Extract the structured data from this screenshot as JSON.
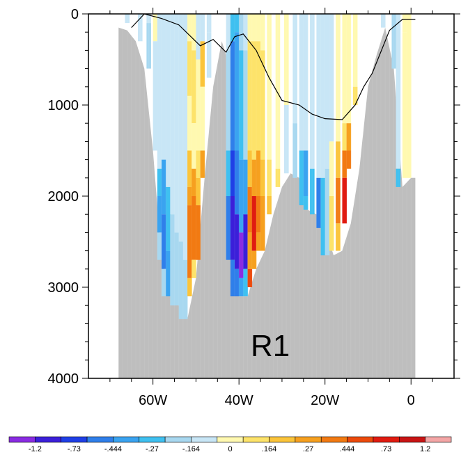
{
  "chart_data": {
    "type": "heatmap",
    "title": "",
    "xlabel": "",
    "ylabel": "",
    "annotation": "R1",
    "x_domain": [
      -75,
      10
    ],
    "y_domain": [
      0,
      4000
    ],
    "y_inverted": true,
    "x_ticks": [
      {
        "value": -60,
        "label": "60W"
      },
      {
        "value": -40,
        "label": "40W"
      },
      {
        "value": -20,
        "label": "20W"
      },
      {
        "value": 0,
        "label": "0"
      }
    ],
    "y_ticks": [
      {
        "value": 0,
        "label": "0"
      },
      {
        "value": 1000,
        "label": "1000"
      },
      {
        "value": 2000,
        "label": "2000"
      },
      {
        "value": 3000,
        "label": "3000"
      },
      {
        "value": 4000,
        "label": "4000"
      }
    ],
    "colorbar": {
      "labels": [
        "-1.2",
        "-.73",
        "-.444",
        "-.27",
        "-.164",
        "0",
        ".164",
        ".27",
        ".444",
        ".73",
        "1.2"
      ],
      "colors": [
        "#8a2be2",
        "#3b1fd9",
        "#1f3fe6",
        "#2f7fea",
        "#3aa3f0",
        "#3fc0f0",
        "#a8d8f0",
        "#c8e6f6",
        "#fff9b0",
        "#fde36a",
        "#fbc43a",
        "#f6a01f",
        "#f27a12",
        "#ec4a0c",
        "#e01b10",
        "#c81414",
        "#f4a6a6"
      ]
    },
    "land_color": "#bebebe",
    "land_profile": [
      {
        "lon": -68,
        "depth": 150
      },
      {
        "lon": -66,
        "depth": 180
      },
      {
        "lon": -64,
        "depth": 300
      },
      {
        "lon": -62,
        "depth": 600
      },
      {
        "lon": -60,
        "depth": 1500
      },
      {
        "lon": -58,
        "depth": 2700
      },
      {
        "lon": -56,
        "depth": 3100
      },
      {
        "lon": -54,
        "depth": 3200
      },
      {
        "lon": -52,
        "depth": 3350
      },
      {
        "lon": -50,
        "depth": 2900
      },
      {
        "lon": -48,
        "depth": 1800
      },
      {
        "lon": -46,
        "depth": 800
      },
      {
        "lon": -44,
        "depth": 300
      },
      {
        "lon": -43,
        "depth": 450
      },
      {
        "lon": -42,
        "depth": 1500
      },
      {
        "lon": -41,
        "depth": 2700
      },
      {
        "lon": -40,
        "depth": 3100
      },
      {
        "lon": -38,
        "depth": 3100
      },
      {
        "lon": -36,
        "depth": 2800
      },
      {
        "lon": -34,
        "depth": 2600
      },
      {
        "lon": -32,
        "depth": 2200
      },
      {
        "lon": -30,
        "depth": 1900
      },
      {
        "lon": -28,
        "depth": 1750
      },
      {
        "lon": -26,
        "depth": 1800
      },
      {
        "lon": -24,
        "depth": 2150
      },
      {
        "lon": -22,
        "depth": 2200
      },
      {
        "lon": -20,
        "depth": 2350
      },
      {
        "lon": -18,
        "depth": 2650
      },
      {
        "lon": -16,
        "depth": 2600
      },
      {
        "lon": -14,
        "depth": 2300
      },
      {
        "lon": -12,
        "depth": 1700
      },
      {
        "lon": -10,
        "depth": 800
      },
      {
        "lon": -8,
        "depth": 450
      },
      {
        "lon": -6,
        "depth": 150
      },
      {
        "lon": -4,
        "depth": 600
      },
      {
        "lon": -2,
        "depth": 1900
      },
      {
        "lon": 0,
        "depth": 1800
      },
      {
        "lon": 1,
        "depth": 1800
      }
    ],
    "contour_line": [
      {
        "lon": -65,
        "depth": 150
      },
      {
        "lon": -62,
        "depth": 0
      },
      {
        "lon": -58,
        "depth": 50
      },
      {
        "lon": -54,
        "depth": 120
      },
      {
        "lon": -49,
        "depth": 350
      },
      {
        "lon": -46,
        "depth": 280
      },
      {
        "lon": -43,
        "depth": 420
      },
      {
        "lon": -41,
        "depth": 250
      },
      {
        "lon": -39,
        "depth": 220
      },
      {
        "lon": -36,
        "depth": 400
      },
      {
        "lon": -33,
        "depth": 700
      },
      {
        "lon": -30,
        "depth": 950
      },
      {
        "lon": -26,
        "depth": 1000
      },
      {
        "lon": -23,
        "depth": 1100
      },
      {
        "lon": -20,
        "depth": 1150
      },
      {
        "lon": -16,
        "depth": 1160
      },
      {
        "lon": -13,
        "depth": 1000
      },
      {
        "lon": -11,
        "depth": 800
      },
      {
        "lon": -9,
        "depth": 650
      },
      {
        "lon": -5,
        "depth": 180
      },
      {
        "lon": -2,
        "depth": 60
      },
      {
        "lon": 1,
        "depth": 60
      }
    ],
    "column_profiles": [
      {
        "lon": -66,
        "segments": [
          {
            "to": 100,
            "level": 7
          }
        ]
      },
      {
        "lon": -63,
        "segments": [
          {
            "to": 300,
            "level": 7
          }
        ]
      },
      {
        "lon": -61,
        "segments": [
          {
            "to": 100,
            "level": 7
          },
          {
            "to": 600,
            "level": 6
          }
        ]
      },
      {
        "lon": -59.5,
        "segments": [
          {
            "to": 300,
            "level": 8
          },
          {
            "to": 1500,
            "level": 7
          }
        ]
      },
      {
        "lon": -58.5,
        "segments": [
          {
            "to": 1700,
            "level": 7
          },
          {
            "to": 2000,
            "level": 5
          },
          {
            "to": 2400,
            "level": 4
          },
          {
            "to": 2700,
            "level": 6
          }
        ]
      },
      {
        "lon": -57.5,
        "segments": [
          {
            "to": 1600,
            "level": 7
          },
          {
            "to": 2200,
            "level": 4
          },
          {
            "to": 2800,
            "level": 3
          },
          {
            "to": 3100,
            "level": 6
          }
        ]
      },
      {
        "lon": -56.5,
        "segments": [
          {
            "to": 1900,
            "level": 7
          },
          {
            "to": 2600,
            "level": 5
          },
          {
            "to": 3100,
            "level": 4
          }
        ]
      },
      {
        "lon": -55.5,
        "segments": [
          {
            "to": 2200,
            "level": 7
          },
          {
            "to": 3200,
            "level": 6
          }
        ]
      },
      {
        "lon": -54.5,
        "segments": [
          {
            "to": 2400,
            "level": 7
          },
          {
            "to": 3200,
            "level": 6
          }
        ]
      },
      {
        "lon": -53.5,
        "segments": [
          {
            "to": 2500,
            "level": 7
          },
          {
            "to": 3350,
            "level": 6
          }
        ]
      },
      {
        "lon": -52.5,
        "segments": [
          {
            "to": 2700,
            "level": 7
          },
          {
            "to": 3350,
            "level": 6
          }
        ]
      },
      {
        "lon": -51.5,
        "segments": [
          {
            "to": 300,
            "level": 8
          },
          {
            "to": 900,
            "level": 9
          },
          {
            "to": 1500,
            "level": 8
          },
          {
            "to": 1900,
            "level": 10
          },
          {
            "to": 2100,
            "level": 11
          },
          {
            "to": 2900,
            "level": 12
          },
          {
            "to": 3100,
            "level": 10
          }
        ]
      },
      {
        "lon": -50.5,
        "segments": [
          {
            "to": 400,
            "level": 8
          },
          {
            "to": 1200,
            "level": 9
          },
          {
            "to": 1700,
            "level": 8
          },
          {
            "to": 2000,
            "level": 11
          },
          {
            "to": 2700,
            "level": 12
          },
          {
            "to": 2900,
            "level": 9
          }
        ]
      },
      {
        "lon": -49.5,
        "segments": [
          {
            "to": 500,
            "level": 7
          },
          {
            "to": 1500,
            "level": 8
          },
          {
            "to": 1800,
            "level": 9
          },
          {
            "to": 2100,
            "level": 10
          },
          {
            "to": 2700,
            "level": 12
          }
        ]
      },
      {
        "lon": -48.5,
        "segments": [
          {
            "to": 300,
            "level": 7
          },
          {
            "to": 800,
            "level": 10
          },
          {
            "to": 1500,
            "level": 8
          },
          {
            "to": 1800,
            "level": 11
          }
        ]
      },
      {
        "lon": -47,
        "segments": [
          {
            "to": 200,
            "level": 7
          },
          {
            "to": 700,
            "level": 7
          }
        ]
      },
      {
        "lon": -42.5,
        "segments": [
          {
            "to": 400,
            "level": 7
          },
          {
            "to": 1500,
            "level": 6
          },
          {
            "to": 2000,
            "level": 5
          },
          {
            "to": 2700,
            "level": 3
          }
        ]
      },
      {
        "lon": -41.5,
        "segments": [
          {
            "to": 300,
            "level": 5
          },
          {
            "to": 1500,
            "level": 3
          },
          {
            "to": 2000,
            "level": 2
          },
          {
            "to": 2700,
            "level": 1
          },
          {
            "to": 3100,
            "level": 3
          }
        ]
      },
      {
        "lon": -40.5,
        "segments": [
          {
            "to": 200,
            "level": 5
          },
          {
            "to": 1500,
            "level": 4
          },
          {
            "to": 2200,
            "level": 3
          },
          {
            "to": 2800,
            "level": 1
          },
          {
            "to": 3100,
            "level": 3
          }
        ]
      },
      {
        "lon": -39.5,
        "segments": [
          {
            "to": 400,
            "level": 6
          },
          {
            "to": 1600,
            "level": 5
          },
          {
            "to": 2400,
            "level": 4
          },
          {
            "to": 2900,
            "level": 0
          },
          {
            "to": 3100,
            "level": 4
          }
        ]
      },
      {
        "lon": -38.5,
        "segments": [
          {
            "to": 400,
            "level": 7
          },
          {
            "to": 1600,
            "level": 6
          },
          {
            "to": 2200,
            "level": 4
          },
          {
            "to": 2800,
            "level": 1
          },
          {
            "to": 3100,
            "level": 5
          }
        ]
      },
      {
        "lon": -37.5,
        "segments": [
          {
            "to": 300,
            "level": 8
          },
          {
            "to": 1500,
            "level": 9
          },
          {
            "to": 1900,
            "level": 10
          },
          {
            "to": 2400,
            "level": 12
          },
          {
            "to": 2800,
            "level": 11
          },
          {
            "to": 3000,
            "level": 13
          }
        ]
      },
      {
        "lon": -36.5,
        "segments": [
          {
            "to": 300,
            "level": 8
          },
          {
            "to": 1600,
            "level": 9
          },
          {
            "to": 2000,
            "level": 11
          },
          {
            "to": 2600,
            "level": 14
          },
          {
            "to": 2800,
            "level": 11
          }
        ]
      },
      {
        "lon": -35.5,
        "segments": [
          {
            "to": 300,
            "level": 8
          },
          {
            "to": 1500,
            "level": 9
          },
          {
            "to": 2000,
            "level": 11
          },
          {
            "to": 2400,
            "level": 12
          },
          {
            "to": 2600,
            "level": 11
          }
        ]
      },
      {
        "lon": -34.5,
        "segments": [
          {
            "to": 400,
            "level": 8
          },
          {
            "to": 1600,
            "level": 9
          },
          {
            "to": 2000,
            "level": 10
          },
          {
            "to": 2600,
            "level": 11
          }
        ]
      },
      {
        "lon": -33,
        "segments": [
          {
            "to": 1600,
            "level": 8
          },
          {
            "to": 2000,
            "level": 9
          },
          {
            "to": 2200,
            "level": 10
          }
        ]
      },
      {
        "lon": -31,
        "segments": [
          {
            "to": 1700,
            "level": 8
          },
          {
            "to": 1900,
            "level": 9
          }
        ]
      },
      {
        "lon": -29,
        "segments": [
          {
            "to": 1000,
            "level": 8
          },
          {
            "to": 1750,
            "level": 7
          }
        ]
      },
      {
        "lon": -27,
        "segments": [
          {
            "to": 1200,
            "level": 7
          },
          {
            "to": 1800,
            "level": 6
          }
        ]
      },
      {
        "lon": -25.5,
        "segments": [
          {
            "to": 1500,
            "level": 7
          },
          {
            "to": 2100,
            "level": 5
          }
        ]
      },
      {
        "lon": -24.5,
        "segments": [
          {
            "to": 1500,
            "level": 7
          },
          {
            "to": 2000,
            "level": 4
          },
          {
            "to": 2150,
            "level": 5
          }
        ]
      },
      {
        "lon": -23,
        "segments": [
          {
            "to": 1700,
            "level": 7
          },
          {
            "to": 2200,
            "level": 5
          }
        ]
      },
      {
        "lon": -21.5,
        "segments": [
          {
            "to": 1800,
            "level": 7
          },
          {
            "to": 2350,
            "level": 3
          }
        ]
      },
      {
        "lon": -20.5,
        "segments": [
          {
            "to": 1800,
            "level": 7
          },
          {
            "to": 2650,
            "level": 5
          }
        ]
      },
      {
        "lon": -19.5,
        "segments": [
          {
            "to": 1700,
            "level": 7
          },
          {
            "to": 2650,
            "level": 6
          }
        ]
      },
      {
        "lon": -18.5,
        "segments": [
          {
            "to": 1400,
            "level": 7
          },
          {
            "to": 2000,
            "level": 8
          },
          {
            "to": 2600,
            "level": 9
          }
        ]
      },
      {
        "lon": -17,
        "segments": [
          {
            "to": 1400,
            "level": 8
          },
          {
            "to": 1800,
            "level": 10
          },
          {
            "to": 2300,
            "level": 12
          },
          {
            "to": 2600,
            "level": 10
          }
        ]
      },
      {
        "lon": -15.5,
        "segments": [
          {
            "to": 1200,
            "level": 8
          },
          {
            "to": 1500,
            "level": 9
          },
          {
            "to": 1800,
            "level": 12
          },
          {
            "to": 2300,
            "level": 14
          }
        ]
      },
      {
        "lon": -14.5,
        "segments": [
          {
            "to": 1200,
            "level": 8
          },
          {
            "to": 1500,
            "level": 11
          },
          {
            "to": 1700,
            "level": 12
          }
        ]
      },
      {
        "lon": -13,
        "segments": [
          {
            "to": 800,
            "level": 8
          },
          {
            "to": 1000,
            "level": 9
          }
        ]
      },
      {
        "lon": -6.5,
        "segments": [
          {
            "to": 150,
            "level": 7
          }
        ]
      },
      {
        "lon": -4,
        "segments": [
          {
            "to": 600,
            "level": 6
          }
        ]
      },
      {
        "lon": -3,
        "segments": [
          {
            "to": 1000,
            "level": 7
          },
          {
            "to": 1700,
            "level": 7
          },
          {
            "to": 1900,
            "level": 5
          }
        ]
      },
      {
        "lon": -1.5,
        "segments": [
          {
            "to": 200,
            "level": 8
          },
          {
            "to": 1800,
            "level": 8
          }
        ]
      },
      {
        "lon": -0.5,
        "segments": [
          {
            "to": 1800,
            "level": 8
          }
        ]
      }
    ]
  }
}
